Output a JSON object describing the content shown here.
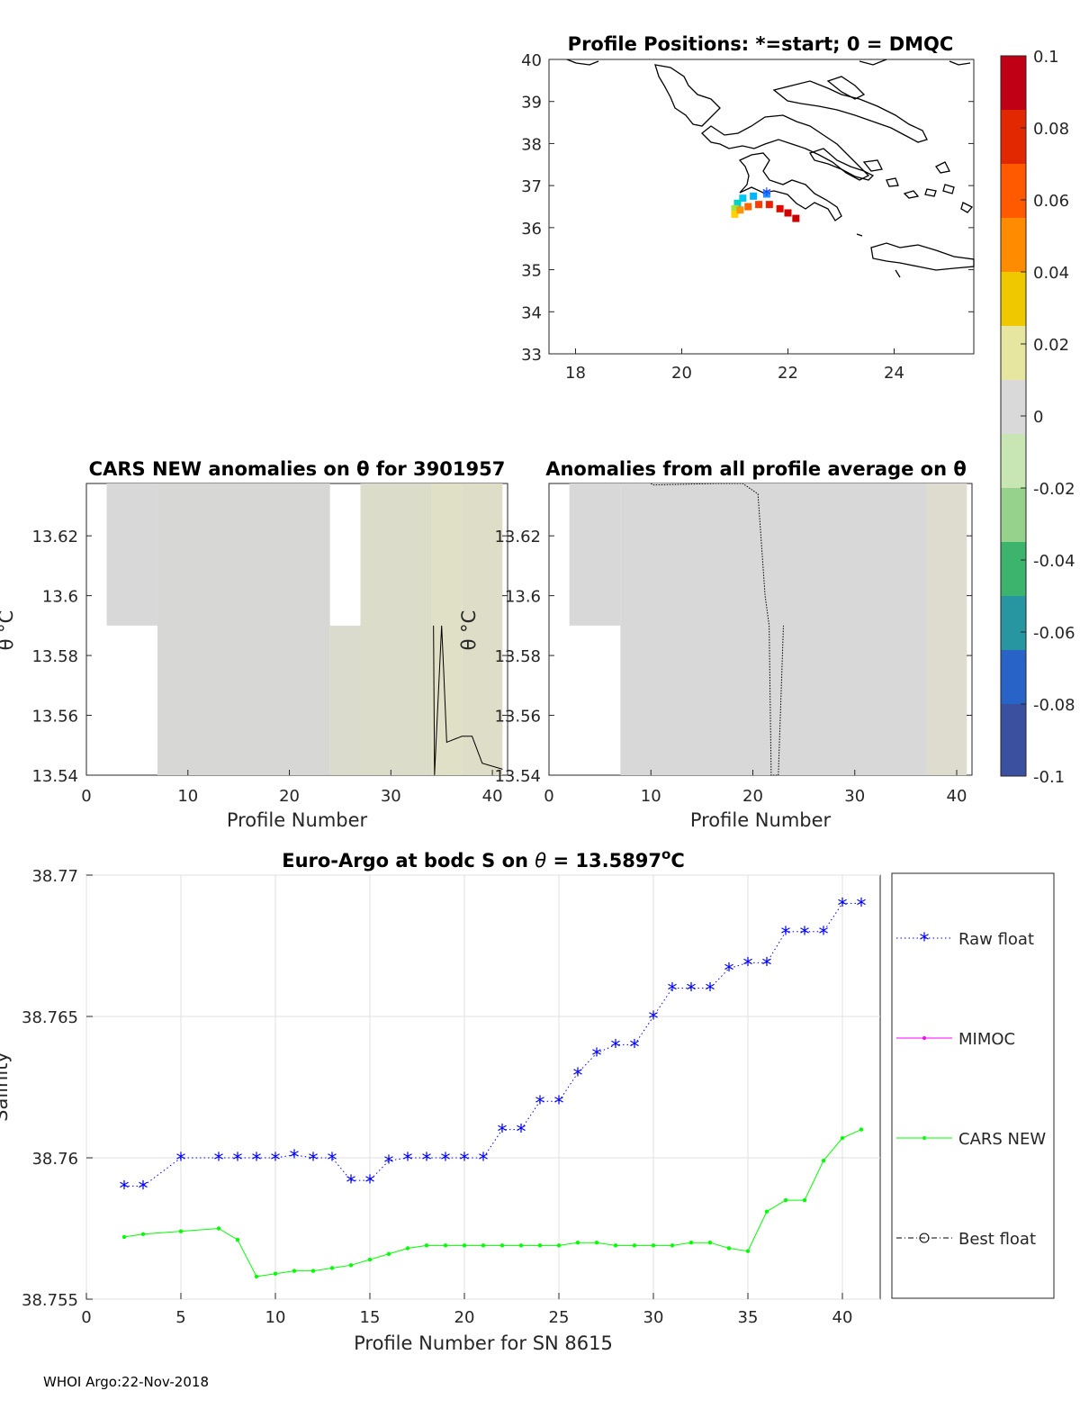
{
  "chart_data": [
    {
      "type": "map",
      "title": "Profile Positions: *=start; 0 = DMQC",
      "xlim": [
        17.5,
        25.5
      ],
      "ylim": [
        33,
        40
      ],
      "xticks": [
        "18",
        "20",
        "22",
        "24"
      ],
      "yticks": [
        "33",
        "34",
        "35",
        "36",
        "37",
        "38",
        "39",
        "40"
      ],
      "track": [
        [
          21.6,
          36.8
        ],
        [
          21.35,
          36.75
        ],
        [
          21.15,
          36.7
        ],
        [
          21.05,
          36.58
        ],
        [
          21.0,
          36.45
        ],
        [
          21.0,
          36.32
        ],
        [
          21.1,
          36.42
        ],
        [
          21.25,
          36.5
        ],
        [
          21.45,
          36.55
        ],
        [
          21.65,
          36.55
        ],
        [
          21.85,
          36.45
        ],
        [
          22.0,
          36.35
        ],
        [
          22.15,
          36.22
        ]
      ],
      "start_marker": "*"
    },
    {
      "type": "colorbar",
      "range": [
        -0.1,
        0.1
      ],
      "tick_labels": [
        "0.1",
        "0.08",
        "0.06",
        "0.04",
        "0.02",
        "0",
        "-0.02",
        "-0.04",
        "-0.06",
        "-0.08",
        "-0.1"
      ],
      "colors": [
        "#c00014",
        "#e12800",
        "#ff5a00",
        "#ff8c00",
        "#f0c800",
        "#e6e6a0",
        "#d9d9d9",
        "#c8e6b4",
        "#96d28c",
        "#3cb46e",
        "#2896a0",
        "#2864c8",
        "#3c50a0"
      ]
    },
    {
      "type": "heatmap",
      "title": "CARS NEW anomalies on θ for 3901957",
      "xlabel": "Profile Number",
      "ylabel": "θ °C",
      "xlim": [
        0,
        41.5
      ],
      "ylim": [
        13.54,
        13.6375
      ],
      "xticks": [
        "0",
        "10",
        "20",
        "30",
        "40"
      ],
      "yticks": [
        "13.54",
        "13.56",
        "13.58",
        "13.6",
        "13.62"
      ],
      "cells": [
        {
          "x0": 2,
          "x1": 7,
          "y0": 13.59,
          "y1": 13.6375,
          "color": "#d8d8d8"
        },
        {
          "x0": 7,
          "x1": 24,
          "y0": 13.54,
          "y1": 13.6375,
          "color": "#d7d7d5"
        },
        {
          "x0": 24,
          "x1": 27,
          "y0": 13.54,
          "y1": 13.59,
          "color": "#dbdbcd"
        },
        {
          "x0": 27,
          "x1": 34,
          "y0": 13.54,
          "y1": 13.6375,
          "color": "#dcdcca"
        },
        {
          "x0": 34,
          "x1": 37,
          "y0": 13.54,
          "y1": 13.6375,
          "color": "#e0e0c6"
        },
        {
          "x0": 37,
          "x1": 41,
          "y0": 13.54,
          "y1": 13.6375,
          "color": "#dedec8"
        }
      ],
      "contour": [
        [
          34.2,
          13.59
        ],
        [
          34.3,
          13.54
        ],
        [
          35.0,
          13.59
        ],
        [
          35.2,
          13.575
        ],
        [
          35.5,
          13.551
        ],
        [
          37,
          13.553
        ],
        [
          38,
          13.553
        ],
        [
          39,
          13.544
        ],
        [
          41,
          13.542
        ]
      ]
    },
    {
      "type": "heatmap",
      "title": "Anomalies from all profile average on θ",
      "xlabel": "Profile Number",
      "ylabel": "θ °C",
      "xlim": [
        0,
        41.5
      ],
      "ylim": [
        13.54,
        13.6375
      ],
      "xticks": [
        "0",
        "10",
        "20",
        "30",
        "40"
      ],
      "yticks": [
        "13.54",
        "13.56",
        "13.58",
        "13.6",
        "13.62"
      ],
      "cells": [
        {
          "x0": 2,
          "x1": 7,
          "y0": 13.59,
          "y1": 13.6375,
          "color": "#d8d8d8"
        },
        {
          "x0": 7,
          "x1": 37,
          "y0": 13.54,
          "y1": 13.6375,
          "color": "#d8d8d8"
        },
        {
          "x0": 37,
          "x1": 41,
          "y0": 13.54,
          "y1": 13.6375,
          "color": "#dddcce"
        }
      ],
      "contour": [
        [
          10,
          13.6375
        ],
        [
          10.2,
          13.637
        ],
        [
          16.5,
          13.6375
        ],
        [
          19,
          13.6375
        ],
        [
          20.5,
          13.634
        ],
        [
          21.2,
          13.6
        ],
        [
          21.6,
          13.59
        ],
        [
          21.8,
          13.54
        ],
        [
          22.5,
          13.54
        ],
        [
          23,
          13.59
        ]
      ]
    },
    {
      "type": "line",
      "title": "Euro-Argo at bodc S on θ = 13.5897°C",
      "title_main": "Euro-Argo at bodc S on",
      "title_theta": "θ",
      "title_value": "= 13.5897",
      "title_deg": "o",
      "title_unit": "C",
      "xlabel": "Profile Number for SN 8615",
      "ylabel": "Salinity",
      "xlim": [
        0,
        42
      ],
      "ylim": [
        38.755,
        38.77
      ],
      "xticks": [
        "0",
        "5",
        "10",
        "15",
        "20",
        "25",
        "30",
        "35",
        "40"
      ],
      "yticks": [
        "38.755",
        "38.76",
        "38.765",
        "38.77"
      ],
      "grid": true,
      "legend": "outside-right",
      "series": [
        {
          "name": "Raw float",
          "color": "#0000ff",
          "style": "dotted",
          "marker": "*",
          "x": [
            2,
            3,
            5,
            7,
            8,
            9,
            10,
            11,
            12,
            13,
            14,
            15,
            16,
            17,
            18,
            19,
            20,
            21,
            22,
            23,
            24,
            25,
            26,
            27,
            28,
            29,
            30,
            31,
            32,
            33,
            34,
            35,
            36,
            37,
            38,
            39,
            40,
            41
          ],
          "values": [
            38.759,
            38.759,
            38.76,
            38.76,
            38.76,
            38.76,
            38.76,
            38.7601,
            38.76,
            38.76,
            38.7592,
            38.7592,
            38.7599,
            38.76,
            38.76,
            38.76,
            38.76,
            38.76,
            38.761,
            38.761,
            38.762,
            38.762,
            38.763,
            38.7637,
            38.764,
            38.764,
            38.765,
            38.766,
            38.766,
            38.766,
            38.7667,
            38.7669,
            38.7669,
            38.768,
            38.768,
            38.768,
            38.769,
            38.769
          ]
        },
        {
          "name": "MIMOC",
          "color": "#ff00ff",
          "style": "solid",
          "marker": ".",
          "x": [],
          "values": []
        },
        {
          "name": "CARS NEW",
          "color": "#00ff00",
          "style": "solid",
          "marker": ".",
          "x": [
            2,
            3,
            5,
            7,
            8,
            9,
            10,
            11,
            12,
            13,
            14,
            15,
            16,
            17,
            18,
            19,
            20,
            21,
            22,
            23,
            24,
            25,
            26,
            27,
            28,
            29,
            30,
            31,
            32,
            33,
            34,
            35,
            36,
            37,
            38,
            39,
            40,
            41
          ],
          "values": [
            38.7572,
            38.7573,
            38.7574,
            38.7575,
            38.7571,
            38.7558,
            38.7559,
            38.756,
            38.756,
            38.7561,
            38.7562,
            38.7564,
            38.7566,
            38.7568,
            38.7569,
            38.7569,
            38.7569,
            38.7569,
            38.7569,
            38.7569,
            38.7569,
            38.7569,
            38.757,
            38.757,
            38.7569,
            38.7569,
            38.7569,
            38.7569,
            38.757,
            38.757,
            38.7568,
            38.7567,
            38.7581,
            38.7585,
            38.7585,
            38.7599,
            38.7607,
            38.761
          ]
        },
        {
          "name": "Best float",
          "color": "#000000",
          "style": "dashdot",
          "marker": "o",
          "x": [],
          "values": []
        }
      ]
    }
  ],
  "footer": "WHOI Argo:22-Nov-2018"
}
